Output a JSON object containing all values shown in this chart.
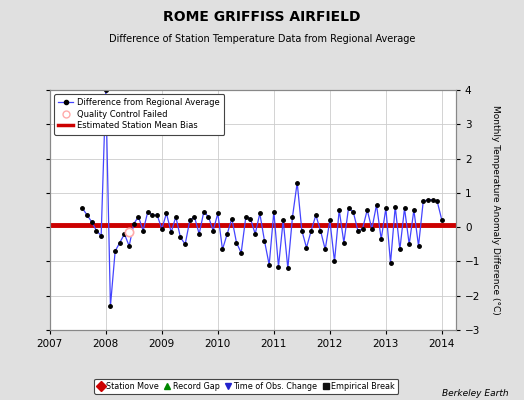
{
  "title": "ROME GRIFFISS AIRFIELD",
  "subtitle": "Difference of Station Temperature Data from Regional Average",
  "ylabel": "Monthly Temperature Anomaly Difference (°C)",
  "xlabel_credit": "Berkeley Earth",
  "ylim": [
    -3,
    4
  ],
  "xlim": [
    2007.0,
    2014.25
  ],
  "xticks": [
    2007,
    2008,
    2009,
    2010,
    2011,
    2012,
    2013,
    2014
  ],
  "yticks": [
    -3,
    -2,
    -1,
    0,
    1,
    2,
    3,
    4
  ],
  "mean_bias": 0.05,
  "background_color": "#e0e0e0",
  "plot_bg_color": "#ffffff",
  "line_color": "#4444ff",
  "marker_color": "#000000",
  "bias_color": "#cc0000",
  "grid_color": "#cccccc",
  "time_series": [
    [
      2007.583,
      0.55
    ],
    [
      2007.667,
      0.35
    ],
    [
      2007.75,
      0.15
    ],
    [
      2007.833,
      -0.1
    ],
    [
      2007.917,
      -0.25
    ],
    [
      2008.0,
      4.0
    ],
    [
      2008.083,
      -2.3
    ],
    [
      2008.167,
      -0.7
    ],
    [
      2008.25,
      -0.45
    ],
    [
      2008.333,
      -0.2
    ],
    [
      2008.417,
      -0.55
    ],
    [
      2008.5,
      0.1
    ],
    [
      2008.583,
      0.3
    ],
    [
      2008.667,
      -0.1
    ],
    [
      2008.75,
      0.45
    ],
    [
      2008.833,
      0.35
    ],
    [
      2008.917,
      0.35
    ],
    [
      2009.0,
      -0.05
    ],
    [
      2009.083,
      0.4
    ],
    [
      2009.167,
      -0.15
    ],
    [
      2009.25,
      0.3
    ],
    [
      2009.333,
      -0.3
    ],
    [
      2009.417,
      -0.5
    ],
    [
      2009.5,
      0.2
    ],
    [
      2009.583,
      0.3
    ],
    [
      2009.667,
      -0.2
    ],
    [
      2009.75,
      0.45
    ],
    [
      2009.833,
      0.3
    ],
    [
      2009.917,
      -0.1
    ],
    [
      2010.0,
      0.4
    ],
    [
      2010.083,
      -0.65
    ],
    [
      2010.167,
      -0.2
    ],
    [
      2010.25,
      0.25
    ],
    [
      2010.333,
      -0.45
    ],
    [
      2010.417,
      -0.75
    ],
    [
      2010.5,
      0.3
    ],
    [
      2010.583,
      0.25
    ],
    [
      2010.667,
      -0.2
    ],
    [
      2010.75,
      0.4
    ],
    [
      2010.833,
      -0.4
    ],
    [
      2010.917,
      -1.1
    ],
    [
      2011.0,
      0.45
    ],
    [
      2011.083,
      -1.15
    ],
    [
      2011.167,
      0.2
    ],
    [
      2011.25,
      -1.2
    ],
    [
      2011.333,
      0.3
    ],
    [
      2011.417,
      1.3
    ],
    [
      2011.5,
      -0.1
    ],
    [
      2011.583,
      -0.6
    ],
    [
      2011.667,
      -0.1
    ],
    [
      2011.75,
      0.35
    ],
    [
      2011.833,
      -0.1
    ],
    [
      2011.917,
      -0.65
    ],
    [
      2012.0,
      0.2
    ],
    [
      2012.083,
      -1.0
    ],
    [
      2012.167,
      0.5
    ],
    [
      2012.25,
      -0.45
    ],
    [
      2012.333,
      0.55
    ],
    [
      2012.417,
      0.45
    ],
    [
      2012.5,
      -0.1
    ],
    [
      2012.583,
      -0.05
    ],
    [
      2012.667,
      0.5
    ],
    [
      2012.75,
      -0.05
    ],
    [
      2012.833,
      0.65
    ],
    [
      2012.917,
      -0.35
    ],
    [
      2013.0,
      0.55
    ],
    [
      2013.083,
      -1.05
    ],
    [
      2013.167,
      0.6
    ],
    [
      2013.25,
      -0.65
    ],
    [
      2013.333,
      0.55
    ],
    [
      2013.417,
      -0.5
    ],
    [
      2013.5,
      0.5
    ],
    [
      2013.583,
      -0.55
    ],
    [
      2013.667,
      0.75
    ],
    [
      2013.75,
      0.8
    ],
    [
      2013.833,
      0.8
    ],
    [
      2013.917,
      0.75
    ],
    [
      2014.0,
      0.2
    ]
  ],
  "qc_fail_points": [
    [
      2008.417,
      -0.15
    ]
  ]
}
